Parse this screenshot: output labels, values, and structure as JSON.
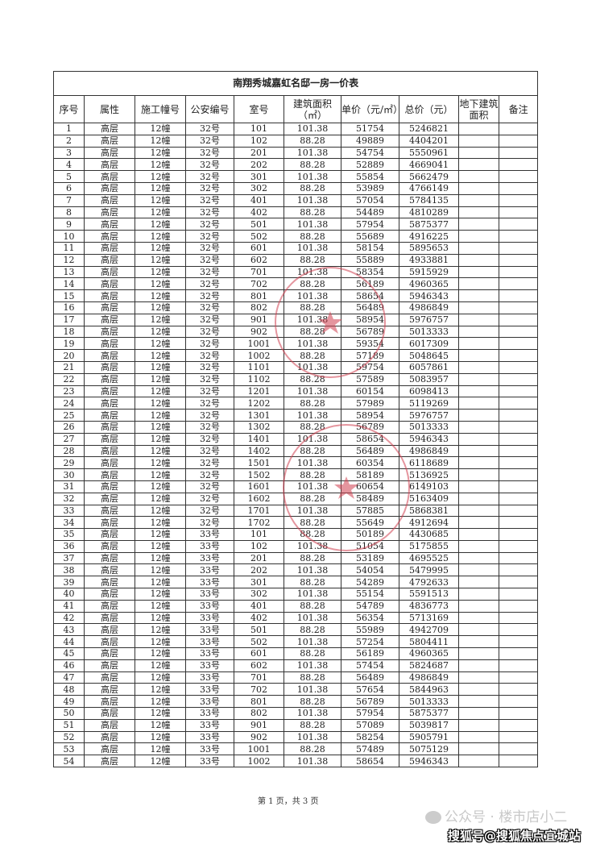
{
  "title": "南翔秀城嘉虹名邸一房一价表",
  "headers": [
    "序号",
    "属性",
    "施工幢号",
    "公安编号",
    "室号",
    "建筑面积（㎡）",
    "单价（元/㎡）",
    "总价（元）",
    "地下建筑面积",
    "备注"
  ],
  "rows": [
    [
      "1",
      "高层",
      "12幢",
      "32号",
      "101",
      "101.38",
      "51754",
      "5246821"
    ],
    [
      "2",
      "高层",
      "12幢",
      "32号",
      "102",
      "88.28",
      "49889",
      "4404201"
    ],
    [
      "3",
      "高层",
      "12幢",
      "32号",
      "201",
      "101.38",
      "54754",
      "5550961"
    ],
    [
      "4",
      "高层",
      "12幢",
      "32号",
      "202",
      "88.28",
      "52889",
      "4669041"
    ],
    [
      "5",
      "高层",
      "12幢",
      "32号",
      "301",
      "101.38",
      "55854",
      "5662479"
    ],
    [
      "6",
      "高层",
      "12幢",
      "32号",
      "302",
      "88.28",
      "53989",
      "4766149"
    ],
    [
      "7",
      "高层",
      "12幢",
      "32号",
      "401",
      "101.38",
      "57054",
      "5784135"
    ],
    [
      "8",
      "高层",
      "12幢",
      "32号",
      "402",
      "88.28",
      "54489",
      "4810289"
    ],
    [
      "9",
      "高层",
      "12幢",
      "32号",
      "501",
      "101.38",
      "57954",
      "5875377"
    ],
    [
      "10",
      "高层",
      "12幢",
      "32号",
      "502",
      "88.28",
      "55689",
      "4916225"
    ],
    [
      "11",
      "高层",
      "12幢",
      "32号",
      "601",
      "101.38",
      "58154",
      "5895653"
    ],
    [
      "12",
      "高层",
      "12幢",
      "32号",
      "602",
      "88.28",
      "55889",
      "4933881"
    ],
    [
      "13",
      "高层",
      "12幢",
      "32号",
      "701",
      "101.38",
      "58354",
      "5915929"
    ],
    [
      "14",
      "高层",
      "12幢",
      "32号",
      "702",
      "88.28",
      "56189",
      "4960365"
    ],
    [
      "15",
      "高层",
      "12幢",
      "32号",
      "801",
      "101.38",
      "58654",
      "5946343"
    ],
    [
      "16",
      "高层",
      "12幢",
      "32号",
      "802",
      "88.28",
      "56489",
      "4986849"
    ],
    [
      "17",
      "高层",
      "12幢",
      "32号",
      "901",
      "101.38",
      "58954",
      "5976757"
    ],
    [
      "18",
      "高层",
      "12幢",
      "32号",
      "902",
      "88.28",
      "56789",
      "5013333"
    ],
    [
      "19",
      "高层",
      "12幢",
      "32号",
      "1001",
      "101.38",
      "59354",
      "6017309"
    ],
    [
      "20",
      "高层",
      "12幢",
      "32号",
      "1002",
      "88.28",
      "57189",
      "5048645"
    ],
    [
      "21",
      "高层",
      "12幢",
      "32号",
      "1101",
      "101.38",
      "59754",
      "6057861"
    ],
    [
      "22",
      "高层",
      "12幢",
      "32号",
      "1102",
      "88.28",
      "57589",
      "5083957"
    ],
    [
      "23",
      "高层",
      "12幢",
      "32号",
      "1201",
      "101.38",
      "60154",
      "6098413"
    ],
    [
      "24",
      "高层",
      "12幢",
      "32号",
      "1202",
      "88.28",
      "57989",
      "5119269"
    ],
    [
      "25",
      "高层",
      "12幢",
      "32号",
      "1301",
      "101.38",
      "58954",
      "5976757"
    ],
    [
      "26",
      "高层",
      "12幢",
      "32号",
      "1302",
      "88.28",
      "56789",
      "5013333"
    ],
    [
      "27",
      "高层",
      "12幢",
      "32号",
      "1401",
      "101.38",
      "58654",
      "5946343"
    ],
    [
      "28",
      "高层",
      "12幢",
      "32号",
      "1402",
      "88.28",
      "56489",
      "4986849"
    ],
    [
      "29",
      "高层",
      "12幢",
      "32号",
      "1501",
      "101.38",
      "60354",
      "6118689"
    ],
    [
      "30",
      "高层",
      "12幢",
      "32号",
      "1502",
      "88.28",
      "58189",
      "5136925"
    ],
    [
      "31",
      "高层",
      "12幢",
      "32号",
      "1601",
      "101.38",
      "60654",
      "6149103"
    ],
    [
      "32",
      "高层",
      "12幢",
      "32号",
      "1602",
      "88.28",
      "58489",
      "5163409"
    ],
    [
      "33",
      "高层",
      "12幢",
      "32号",
      "1701",
      "101.38",
      "57885",
      "5868381"
    ],
    [
      "34",
      "高层",
      "12幢",
      "32号",
      "1702",
      "88.28",
      "55649",
      "4912694"
    ],
    [
      "35",
      "高层",
      "12幢",
      "33号",
      "101",
      "88.28",
      "50189",
      "4430685"
    ],
    [
      "36",
      "高层",
      "12幢",
      "33号",
      "102",
      "101.38",
      "51054",
      "5175855"
    ],
    [
      "37",
      "高层",
      "12幢",
      "33号",
      "201",
      "88.28",
      "53189",
      "4695525"
    ],
    [
      "38",
      "高层",
      "12幢",
      "33号",
      "202",
      "101.38",
      "54054",
      "5479995"
    ],
    [
      "39",
      "高层",
      "12幢",
      "33号",
      "301",
      "88.28",
      "54289",
      "4792633"
    ],
    [
      "40",
      "高层",
      "12幢",
      "33号",
      "302",
      "101.38",
      "55154",
      "5591513"
    ],
    [
      "41",
      "高层",
      "12幢",
      "33号",
      "401",
      "88.28",
      "54789",
      "4836773"
    ],
    [
      "42",
      "高层",
      "12幢",
      "33号",
      "402",
      "101.38",
      "56354",
      "5713169"
    ],
    [
      "43",
      "高层",
      "12幢",
      "33号",
      "501",
      "88.28",
      "55989",
      "4942709"
    ],
    [
      "44",
      "高层",
      "12幢",
      "33号",
      "502",
      "101.38",
      "57254",
      "5804411"
    ],
    [
      "45",
      "高层",
      "12幢",
      "33号",
      "601",
      "88.28",
      "56189",
      "4960365"
    ],
    [
      "46",
      "高层",
      "12幢",
      "33号",
      "602",
      "101.38",
      "57454",
      "5824687"
    ],
    [
      "47",
      "高层",
      "12幢",
      "33号",
      "701",
      "88.28",
      "56489",
      "4986849"
    ],
    [
      "48",
      "高层",
      "12幢",
      "33号",
      "702",
      "101.38",
      "57654",
      "5844963"
    ],
    [
      "49",
      "高层",
      "12幢",
      "33号",
      "801",
      "88.28",
      "56789",
      "5013333"
    ],
    [
      "50",
      "高层",
      "12幢",
      "33号",
      "802",
      "101.38",
      "57954",
      "5875377"
    ],
    [
      "51",
      "高层",
      "12幢",
      "33号",
      "901",
      "88.28",
      "57089",
      "5039817"
    ],
    [
      "52",
      "高层",
      "12幢",
      "33号",
      "902",
      "101.38",
      "58254",
      "5905791"
    ],
    [
      "53",
      "高层",
      "12幢",
      "33号",
      "1001",
      "88.28",
      "57489",
      "5075129"
    ],
    [
      "54",
      "高层",
      "12幢",
      "33号",
      "1002",
      "101.38",
      "58654",
      "5946343"
    ]
  ],
  "footer": "第 1 页，共 3 页",
  "watermark_wechat": "公众号 · 楼市店小二",
  "watermark_sohu": "搜狐号@搜狐焦点宜城站",
  "stamp_color": "#d04050"
}
